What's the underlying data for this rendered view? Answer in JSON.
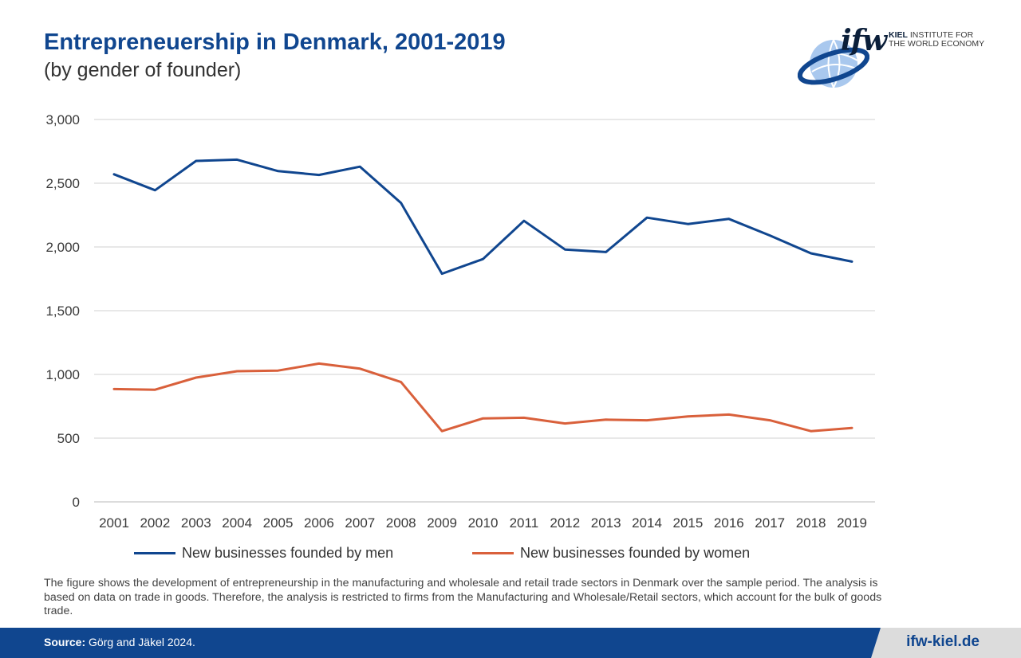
{
  "header": {
    "title": "Entrepreneuership in Denmark, 2001-2019",
    "subtitle": "(by gender of founder)"
  },
  "logo": {
    "mark": "ifw",
    "line1_bold": "KIEL",
    "line1_rest": " INSTITUTE FOR",
    "line2": "THE WORLD ECONOMY",
    "icon": "globe-icon"
  },
  "chart_data": {
    "type": "line",
    "x": [
      "2001",
      "2002",
      "2003",
      "2004",
      "2005",
      "2006",
      "2007",
      "2008",
      "2009",
      "2010",
      "2011",
      "2012",
      "2013",
      "2014",
      "2015",
      "2016",
      "2017",
      "2018",
      "2019"
    ],
    "yticks": [
      "0",
      "500",
      "1,000",
      "1,500",
      "2,000",
      "2,500",
      "3,000"
    ],
    "ylim": [
      0,
      3000
    ],
    "grid": true,
    "legend_position": "bottom",
    "series": [
      {
        "name": "New businesses founded by men",
        "color": "#10468f",
        "values": [
          2570,
          2445,
          2675,
          2685,
          2595,
          2565,
          2630,
          2345,
          1790,
          1905,
          2205,
          1980,
          1960,
          2230,
          2180,
          2220,
          2090,
          1950,
          1885
        ]
      },
      {
        "name": "New businesses founded by women",
        "color": "#d9603b",
        "values": [
          885,
          880,
          975,
          1025,
          1030,
          1085,
          1045,
          940,
          555,
          655,
          660,
          615,
          645,
          640,
          670,
          685,
          640,
          555,
          580
        ]
      }
    ]
  },
  "note": "The figure shows the development of entrepreneurship in the manufacturing and wholesale and retail trade sectors in Denmark over the sample period. The analysis is based on data on trade in goods. Therefore, the analysis is restricted to firms from the Manufacturing and Wholesale/Retail sectors, which account for the bulk of goods trade.",
  "footer": {
    "source_label": "Source:",
    "source_text": " Görg and Jäkel 2024.",
    "url": "ifw-kiel.de"
  }
}
